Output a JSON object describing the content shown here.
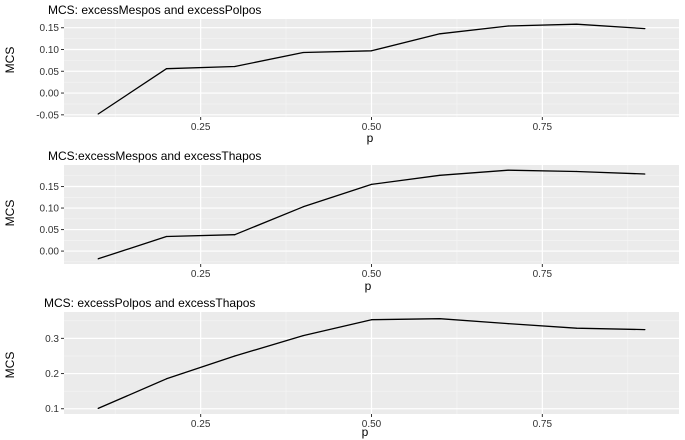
{
  "chart_data": [
    {
      "type": "line",
      "title": "MCS: excessMespos and excessPolpos",
      "xlabel": "p",
      "ylabel": "MCS",
      "xlim": [
        0.05,
        0.95
      ],
      "ylim": [
        -0.055,
        0.17
      ],
      "xticks": [
        0.25,
        0.5,
        0.75
      ],
      "xtick_labels": [
        "0.25",
        "0.50",
        "0.75"
      ],
      "yticks": [
        -0.05,
        0.0,
        0.05,
        0.1,
        0.15
      ],
      "ytick_labels": [
        "-0.05",
        "0.00",
        "0.05",
        "0.10",
        "0.15"
      ],
      "grid": true,
      "x": [
        0.1,
        0.2,
        0.3,
        0.4,
        0.5,
        0.6,
        0.7,
        0.8,
        0.9
      ],
      "series": [
        {
          "values": [
            -0.048,
            0.056,
            0.061,
            0.093,
            0.097,
            0.136,
            0.154,
            0.158,
            0.148
          ]
        }
      ]
    },
    {
      "type": "line",
      "title": "MCS:excessMespos and excessThapos",
      "xlabel": "p",
      "ylabel": "MCS",
      "xlim": [
        0.05,
        0.95
      ],
      "ylim": [
        -0.03,
        0.2
      ],
      "xticks": [
        0.25,
        0.5,
        0.75
      ],
      "xtick_labels": [
        "0.25",
        "0.50",
        "0.75"
      ],
      "yticks": [
        0.0,
        0.05,
        0.1,
        0.15
      ],
      "ytick_labels": [
        "0.00",
        "0.05",
        "0.10",
        "0.15"
      ],
      "grid": true,
      "x": [
        0.1,
        0.2,
        0.3,
        0.4,
        0.5,
        0.6,
        0.7,
        0.8,
        0.9
      ],
      "series": [
        {
          "values": [
            -0.018,
            0.034,
            0.038,
            0.103,
            0.155,
            0.176,
            0.188,
            0.185,
            0.179
          ]
        }
      ]
    },
    {
      "type": "line",
      "title": "MCS: excessPolpos and excessThapos",
      "xlabel": "p",
      "ylabel": "MCS",
      "xlim": [
        0.05,
        0.95
      ],
      "ylim": [
        0.085,
        0.375
      ],
      "xticks": [
        0.25,
        0.5,
        0.75
      ],
      "xtick_labels": [
        "0.25",
        "0.50",
        "0.75"
      ],
      "yticks": [
        0.1,
        0.2,
        0.3
      ],
      "ytick_labels": [
        "0.1",
        "0.2",
        "0.3"
      ],
      "grid": true,
      "x": [
        0.1,
        0.2,
        0.3,
        0.4,
        0.5,
        0.6,
        0.7,
        0.8,
        0.9
      ],
      "series": [
        {
          "values": [
            0.101,
            0.185,
            0.25,
            0.308,
            0.353,
            0.356,
            0.342,
            0.329,
            0.325
          ]
        }
      ]
    }
  ]
}
